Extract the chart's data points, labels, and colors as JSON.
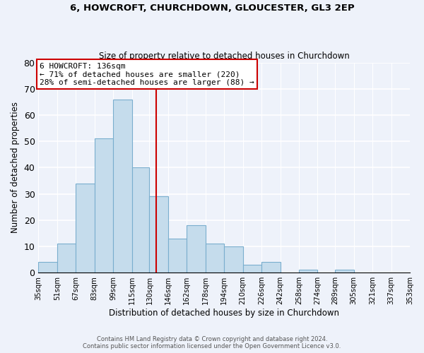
{
  "title": "6, HOWCROFT, CHURCHDOWN, GLOUCESTER, GL3 2EP",
  "subtitle": "Size of property relative to detached houses in Churchdown",
  "xlabel": "Distribution of detached houses by size in Churchdown",
  "ylabel": "Number of detached properties",
  "footer_line1": "Contains HM Land Registry data © Crown copyright and database right 2024.",
  "footer_line2": "Contains public sector information licensed under the Open Government Licence v3.0.",
  "bin_edges": [
    35,
    51,
    67,
    83,
    99,
    115,
    130,
    146,
    162,
    178,
    194,
    210,
    226,
    242,
    258,
    274,
    289,
    305,
    321,
    337,
    353
  ],
  "bin_labels": [
    "35sqm",
    "51sqm",
    "67sqm",
    "83sqm",
    "99sqm",
    "115sqm",
    "130sqm",
    "146sqm",
    "162sqm",
    "178sqm",
    "194sqm",
    "210sqm",
    "226sqm",
    "242sqm",
    "258sqm",
    "274sqm",
    "289sqm",
    "305sqm",
    "321sqm",
    "337sqm",
    "353sqm"
  ],
  "bar_heights": [
    4,
    11,
    34,
    51,
    66,
    40,
    29,
    13,
    18,
    11,
    10,
    3,
    4,
    0,
    1,
    0,
    1,
    0,
    0,
    0
  ],
  "bar_color": "#c5dcec",
  "bar_edge_color": "#7aaece",
  "marker_value": 136,
  "marker_color": "#cc0000",
  "ylim": [
    0,
    80
  ],
  "yticks": [
    0,
    10,
    20,
    30,
    40,
    50,
    60,
    70,
    80
  ],
  "annotation_title": "6 HOWCROFT: 136sqm",
  "annotation_line1": "← 71% of detached houses are smaller (220)",
  "annotation_line2": "28% of semi-detached houses are larger (88) →",
  "annotation_box_color": "#ffffff",
  "annotation_box_edge_color": "#cc0000",
  "background_color": "#eef2fa"
}
